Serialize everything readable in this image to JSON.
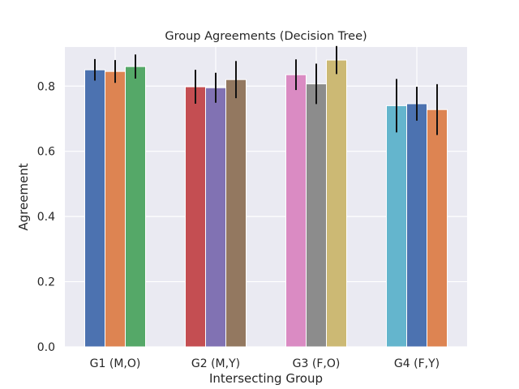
{
  "chart_data": {
    "type": "bar",
    "title": "Group Agreements (Decision Tree)",
    "xlabel": "Intersecting Group",
    "ylabel": "Agreement",
    "ylim": [
      0,
      0.92
    ],
    "yticks": [
      "0.0",
      "0.2",
      "0.4",
      "0.6",
      "0.8"
    ],
    "ytick_values": [
      0,
      0.2,
      0.4,
      0.6,
      0.8
    ],
    "grid": true,
    "background": "#eaeaf2",
    "categories": [
      "G1 (M,O)",
      "G2 (M,Y)",
      "G3 (F,O)",
      "G4 (F,Y)"
    ],
    "groups": [
      {
        "category": "G1 (M,O)",
        "bars": [
          {
            "value": 0.85,
            "err": 0.033,
            "color": "#4c72b0"
          },
          {
            "value": 0.845,
            "err": 0.035,
            "color": "#dd8452"
          },
          {
            "value": 0.86,
            "err": 0.037,
            "color": "#55a868"
          }
        ]
      },
      {
        "category": "G2 (M,Y)",
        "bars": [
          {
            "value": 0.798,
            "err": 0.052,
            "color": "#c44e52"
          },
          {
            "value": 0.795,
            "err": 0.046,
            "color": "#8172b3"
          },
          {
            "value": 0.82,
            "err": 0.057,
            "color": "#937860"
          }
        ]
      },
      {
        "category": "G3 (F,O)",
        "bars": [
          {
            "value": 0.835,
            "err": 0.047,
            "color": "#da8bc3"
          },
          {
            "value": 0.807,
            "err": 0.062,
            "color": "#8c8c8c"
          },
          {
            "value": 0.88,
            "err": 0.043,
            "color": "#ccb974"
          }
        ]
      },
      {
        "category": "G4 (F,Y)",
        "bars": [
          {
            "value": 0.74,
            "err": 0.082,
            "color": "#64b5cd"
          },
          {
            "value": 0.746,
            "err": 0.052,
            "color": "#4c72b0"
          },
          {
            "value": 0.728,
            "err": 0.078,
            "color": "#dd8452"
          }
        ]
      }
    ]
  }
}
